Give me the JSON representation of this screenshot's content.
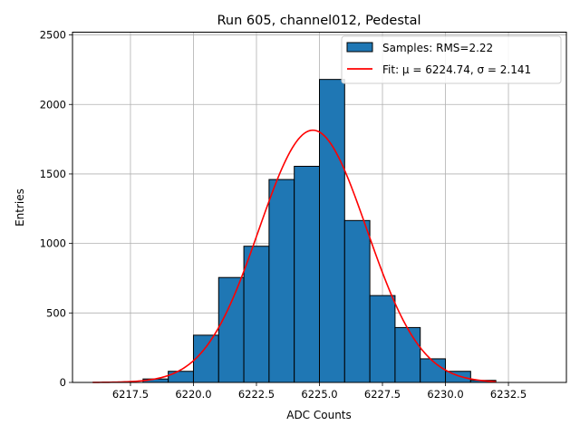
{
  "chart_data": {
    "type": "bar",
    "title": "Run 605, channel012, Pedestal",
    "xlabel": "ADC Counts",
    "ylabel": "Entries",
    "xlim": [
      6215.2,
      6234.8
    ],
    "ylim": [
      0,
      2520
    ],
    "xticks": [
      "6217.5",
      "6220.0",
      "6222.5",
      "6225.0",
      "6227.5",
      "6230.0",
      "6232.5"
    ],
    "xtick_values": [
      6217.5,
      6220.0,
      6222.5,
      6225.0,
      6227.5,
      6230.0,
      6232.5
    ],
    "yticks": [
      "0",
      "500",
      "1000",
      "1500",
      "2000",
      "2500"
    ],
    "ytick_values": [
      0,
      500,
      1000,
      1500,
      2000,
      2500
    ],
    "grid": true,
    "legend_position": "top-right",
    "series": [
      {
        "name": "Samples: RMS=2.22",
        "kind": "histogram",
        "color": "#1f77b4",
        "edge_color": "#000000",
        "bins": [
          {
            "x0": 6218,
            "x1": 6219,
            "value": 25
          },
          {
            "x0": 6219,
            "x1": 6220,
            "value": 80
          },
          {
            "x0": 6220,
            "x1": 6221,
            "value": 340
          },
          {
            "x0": 6221,
            "x1": 6222,
            "value": 755
          },
          {
            "x0": 6222,
            "x1": 6223,
            "value": 980
          },
          {
            "x0": 6223,
            "x1": 6224,
            "value": 1460
          },
          {
            "x0": 6224,
            "x1": 6225,
            "value": 1555
          },
          {
            "x0": 6225,
            "x1": 6226,
            "value": 2180
          },
          {
            "x0": 6226,
            "x1": 6227,
            "value": 1165
          },
          {
            "x0": 6227,
            "x1": 6228,
            "value": 625
          },
          {
            "x0": 6228,
            "x1": 6229,
            "value": 395
          },
          {
            "x0": 6229,
            "x1": 6230,
            "value": 170
          },
          {
            "x0": 6230,
            "x1": 6231,
            "value": 80
          },
          {
            "x0": 6231,
            "x1": 6232,
            "value": 15
          }
        ]
      },
      {
        "name": "Fit: μ = 6224.74, σ = 2.141",
        "kind": "gaussian-fit",
        "color": "#ff0000",
        "mu": 6224.74,
        "sigma": 2.141,
        "amplitude": 1815,
        "x_range": [
          6216,
          6232
        ]
      }
    ]
  }
}
